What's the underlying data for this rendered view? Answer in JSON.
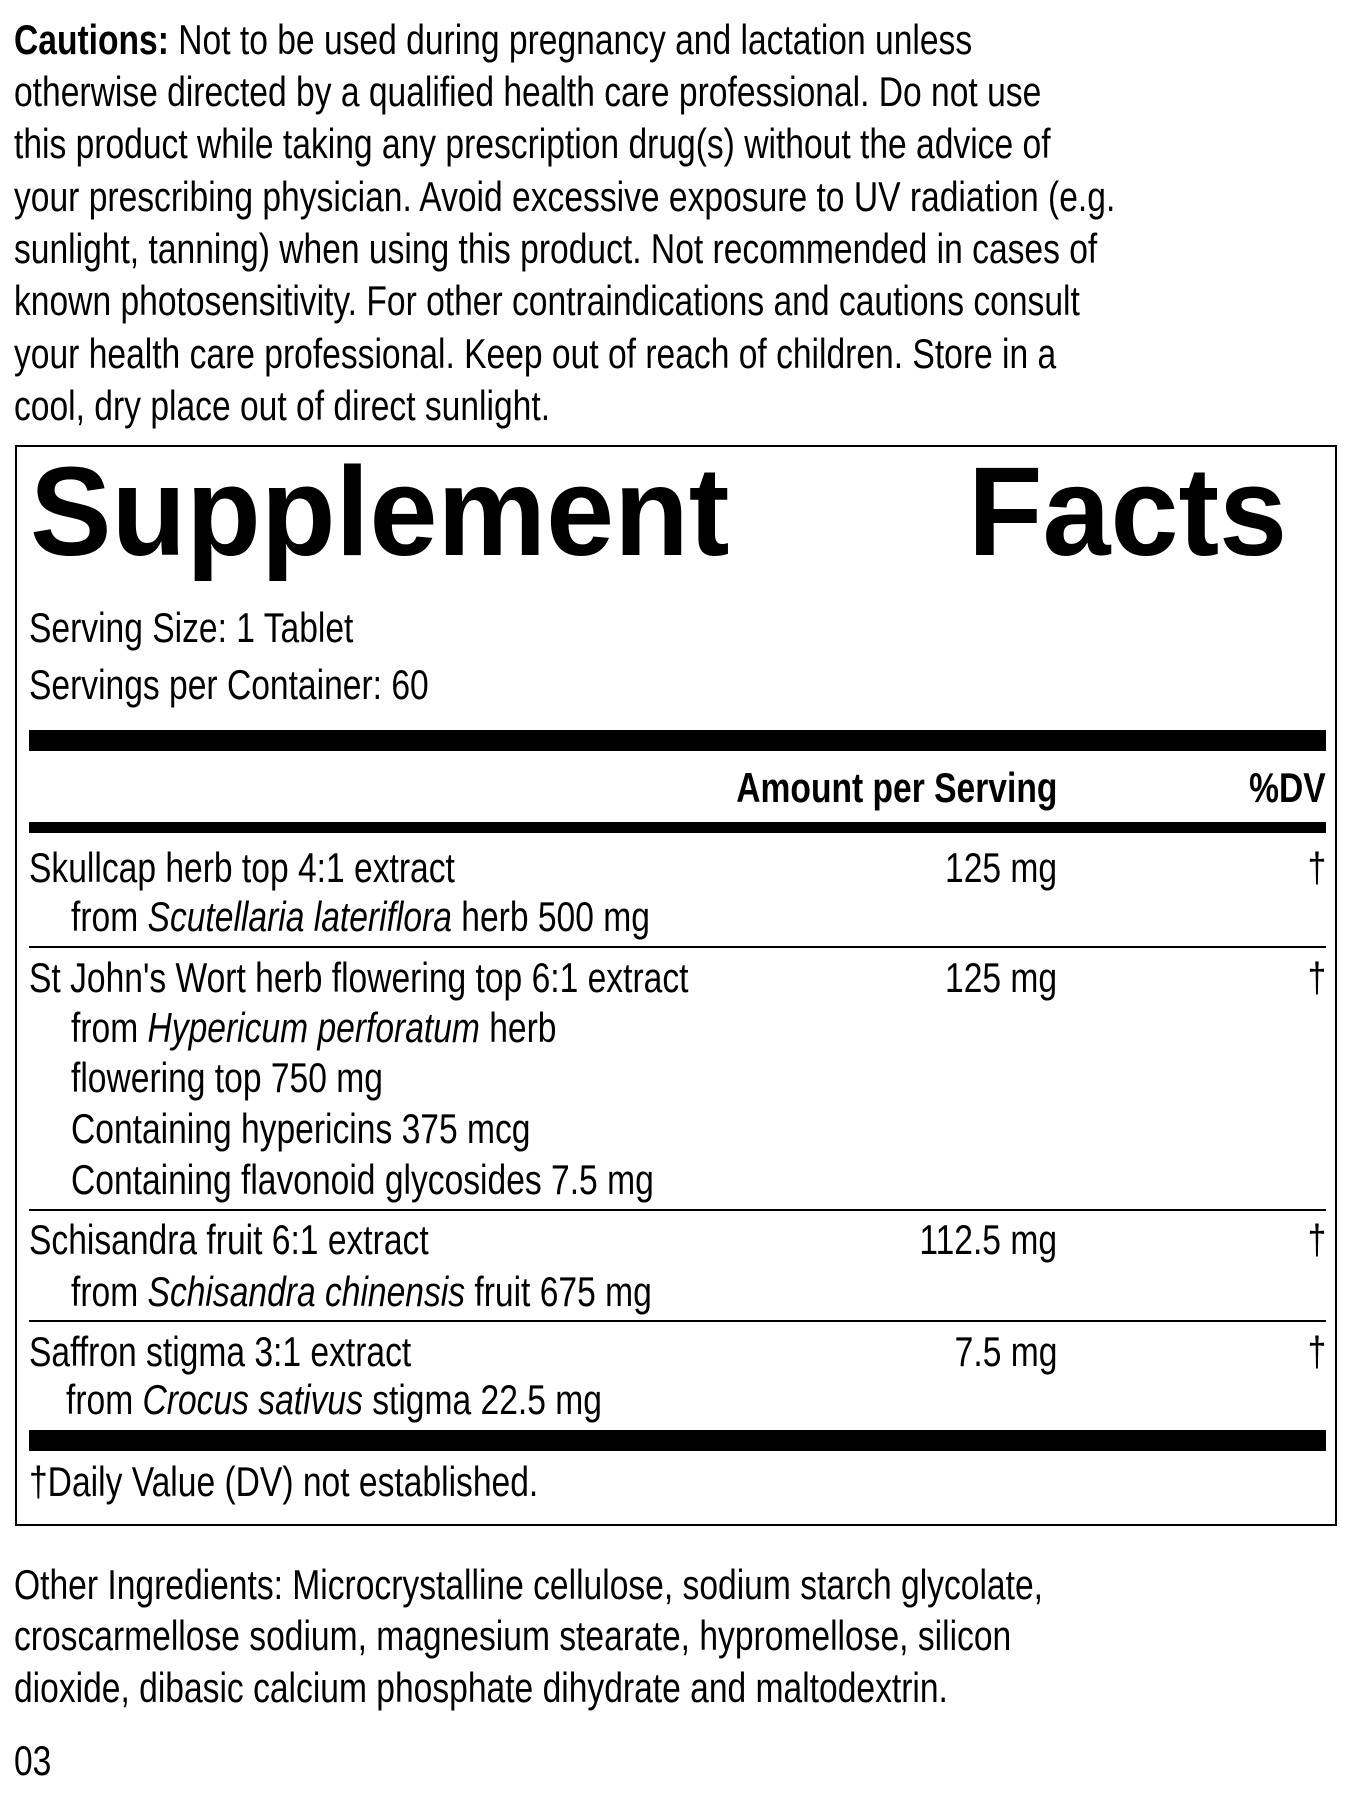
{
  "cautions": {
    "label": "Cautions:",
    "lines": [
      " Not to be used during pregnancy and lactation unless",
      "otherwise directed by a qualified health care professional. Do not use",
      "this product while taking any prescription drug(s) without the advice of",
      "your prescribing physician. Avoid excessive exposure to UV radiation (e.g.",
      "sunlight, tanning) when using this product. Not recommended in cases of",
      "known photosensitivity. For other contraindications and cautions consult",
      "your health care professional. Keep out of reach of children. Store in a",
      "cool, dry place out of direct sunlight."
    ]
  },
  "facts": {
    "title_word1": "Supplement",
    "title_word2": "Facts",
    "serving_size": "Serving Size: 1 Tablet",
    "servings_per_container": "Servings per Container: 60",
    "header_amount": "Amount per Serving",
    "header_dv": "%DV",
    "rows": [
      {
        "name": "Skullcap herb top 4:1 extract",
        "amount": "125 mg",
        "dv": "†",
        "from_pre": "from ",
        "from_italic": "Scutellaria lateriflora",
        "from_post": " herb 500 mg"
      },
      {
        "name": "St John's Wort herb flowering top 6:1 extract",
        "amount": "125 mg",
        "dv": "†",
        "from_pre": "from ",
        "from_italic": "Hypericum perforatum",
        "from_post": " herb",
        "extra": [
          "flowering top 750 mg",
          "Containing hypericins 375 mcg",
          "Containing flavonoid glycosides 7.5 mg"
        ]
      },
      {
        "name": "Schisandra fruit 6:1 extract",
        "amount": "112.5 mg",
        "dv": "†",
        "from_pre": "from ",
        "from_italic": "Schisandra chinensis",
        "from_post": " fruit 675 mg"
      },
      {
        "name": "Saffron stigma 3:1 extract",
        "amount": "7.5 mg",
        "dv": "†",
        "from_pre": "from ",
        "from_italic": "Crocus sativus",
        "from_post": " stigma 22.5 mg"
      }
    ],
    "footnote": "†Daily Value (DV) not established."
  },
  "other_ingredients": [
    "Other Ingredients: Microcrystalline cellulose, sodium starch glycolate,",
    "croscarmellose sodium, magnesium stearate, hypromellose, silicon",
    "dioxide, dibasic calcium phosphate dihydrate and maltodextrin."
  ],
  "code": "03"
}
